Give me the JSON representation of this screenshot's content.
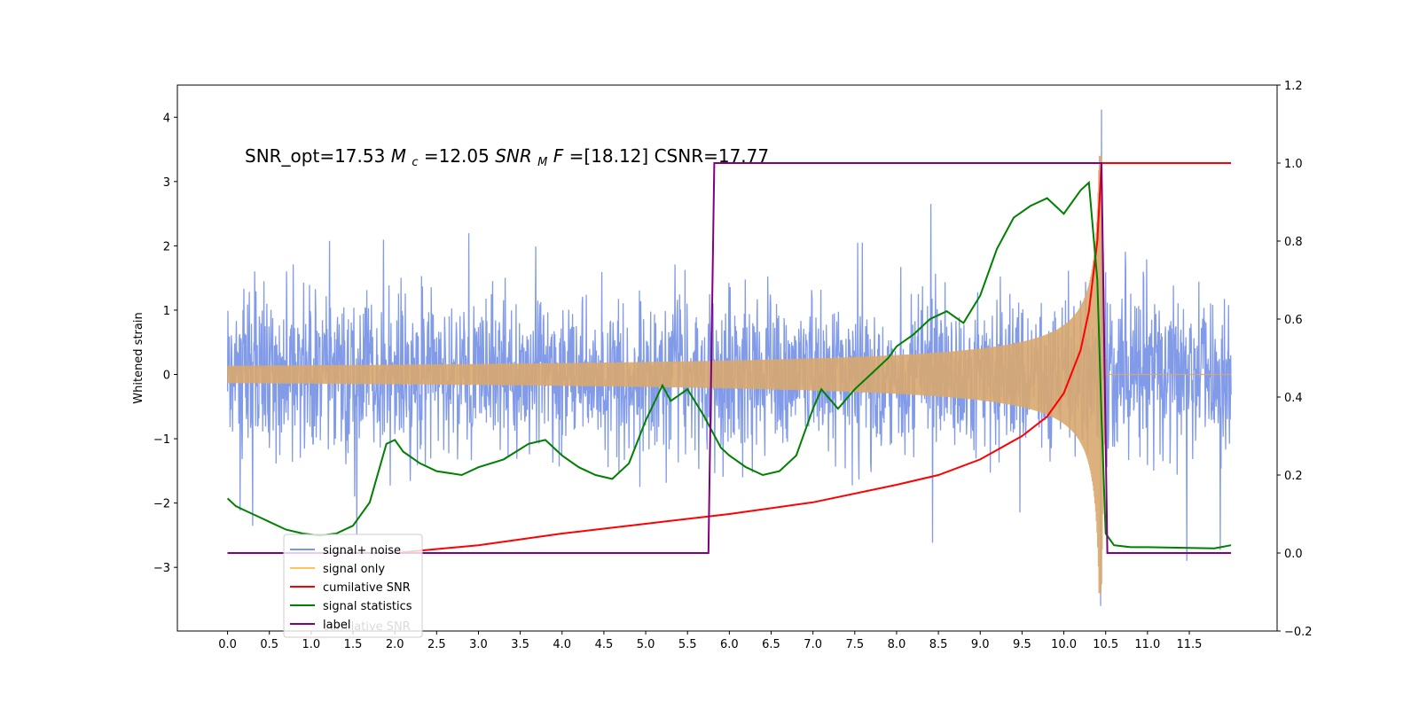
{
  "chart_data": {
    "type": "line",
    "ylabel": "Whitened strain",
    "xlim": [
      -0.6,
      12.55
    ],
    "ylim_left": [
      -3.99,
      4.5
    ],
    "ylim_right": [
      -0.2,
      1.2
    ],
    "x_ticks": [
      "0.0",
      "0.5",
      "1.0",
      "1.5",
      "2.0",
      "2.5",
      "3.0",
      "3.5",
      "4.0",
      "4.5",
      "5.0",
      "5.5",
      "6.0",
      "6.5",
      "7.0",
      "7.5",
      "8.0",
      "8.5",
      "9.0",
      "9.5",
      "10.0",
      "10.5",
      "11.0",
      "11.5"
    ],
    "y_ticks_left": [
      "4",
      "3",
      "2",
      "1",
      "0",
      "−1",
      "−2",
      "−3"
    ],
    "y_ticks_right": [
      "1.2",
      "1.0",
      "0.8",
      "0.6",
      "0.4",
      "0.2",
      "0.0",
      "−0.2"
    ],
    "annotation": {
      "prefix": "SNR_opt=17.53 ",
      "mc_symbol": "M",
      "mc_sub": "c",
      "mc_value": "=12.05  ",
      "snr_symbol": "SNR",
      "snr_sub": "M",
      "snr_f": "F",
      "snr_value": "=[18.12] CSNR=17.77"
    },
    "legend": {
      "placement": "lower-left",
      "entries": [
        {
          "label": "signal+ noise",
          "color": "#7b96e8"
        },
        {
          "label": "signal only",
          "color": "#ffc35e"
        },
        {
          "label": "cumilative SNR",
          "color": "#ff0000"
        },
        {
          "label": "signal statistics",
          "color": "#008000"
        },
        {
          "label": "label",
          "color": "#800080"
        }
      ],
      "ghost_text": "cumilative SNR"
    },
    "series": [
      {
        "name": "signal+ noise",
        "axis": "left",
        "color": "#7b96e8",
        "x_range": [
          0.0,
          12.0
        ],
        "noise_envelope": [
          -1.6,
          1.6
        ],
        "peak_max": 4.12,
        "peak_min": -3.6,
        "peak_x": 10.45
      },
      {
        "name": "signal only",
        "axis": "left",
        "color": "#d8a96f",
        "x_range": [
          0.0,
          12.0
        ],
        "chirp_start_x": 5.8,
        "chirp_end_x": 10.45,
        "peak_amplitude": 3.4
      },
      {
        "name": "cumilative SNR",
        "axis": "right",
        "color": "#ff0000",
        "x": [
          0.0,
          1.0,
          2.0,
          3.0,
          4.0,
          5.0,
          6.0,
          7.0,
          8.0,
          8.5,
          9.0,
          9.5,
          9.8,
          10.0,
          10.2,
          10.3,
          10.4,
          10.45,
          10.5,
          12.0
        ],
        "y": [
          0.0,
          0.0,
          0.0,
          0.02,
          0.05,
          0.075,
          0.1,
          0.13,
          0.175,
          0.2,
          0.24,
          0.3,
          0.35,
          0.41,
          0.52,
          0.62,
          0.8,
          1.0,
          1.0,
          1.0
        ]
      },
      {
        "name": "signal statistics",
        "axis": "right",
        "color": "#008000",
        "x": [
          0.0,
          0.1,
          0.2,
          0.4,
          0.5,
          0.7,
          0.9,
          1.1,
          1.3,
          1.5,
          1.7,
          1.9,
          2.0,
          2.1,
          2.3,
          2.5,
          2.8,
          3.0,
          3.3,
          3.6,
          3.8,
          4.0,
          4.2,
          4.4,
          4.6,
          4.8,
          5.0,
          5.2,
          5.3,
          5.5,
          5.7,
          5.9,
          6.0,
          6.2,
          6.4,
          6.6,
          6.8,
          7.0,
          7.1,
          7.3,
          7.5,
          7.7,
          7.9,
          8.0,
          8.2,
          8.4,
          8.6,
          8.8,
          9.0,
          9.2,
          9.4,
          9.6,
          9.8,
          10.0,
          10.2,
          10.3,
          10.4,
          10.45,
          10.5,
          10.6,
          10.8,
          11.0,
          11.5,
          11.8,
          12.0
        ],
        "y": [
          0.14,
          0.12,
          0.11,
          0.09,
          0.08,
          0.06,
          0.05,
          0.045,
          0.05,
          0.07,
          0.13,
          0.28,
          0.29,
          0.26,
          0.23,
          0.21,
          0.2,
          0.22,
          0.24,
          0.28,
          0.29,
          0.25,
          0.22,
          0.2,
          0.19,
          0.23,
          0.34,
          0.43,
          0.39,
          0.42,
          0.35,
          0.27,
          0.25,
          0.22,
          0.2,
          0.21,
          0.25,
          0.37,
          0.42,
          0.37,
          0.42,
          0.46,
          0.5,
          0.53,
          0.56,
          0.6,
          0.62,
          0.59,
          0.66,
          0.78,
          0.86,
          0.89,
          0.91,
          0.87,
          0.93,
          0.95,
          0.7,
          0.35,
          0.05,
          0.02,
          0.015,
          0.015,
          0.013,
          0.012,
          0.02
        ]
      },
      {
        "name": "label",
        "axis": "right",
        "color": "#800080",
        "x": [
          0.0,
          5.75,
          5.82,
          10.45,
          10.52,
          12.0
        ],
        "y": [
          0.0,
          0.0,
          1.0,
          1.0,
          0.0,
          0.0
        ]
      }
    ]
  }
}
